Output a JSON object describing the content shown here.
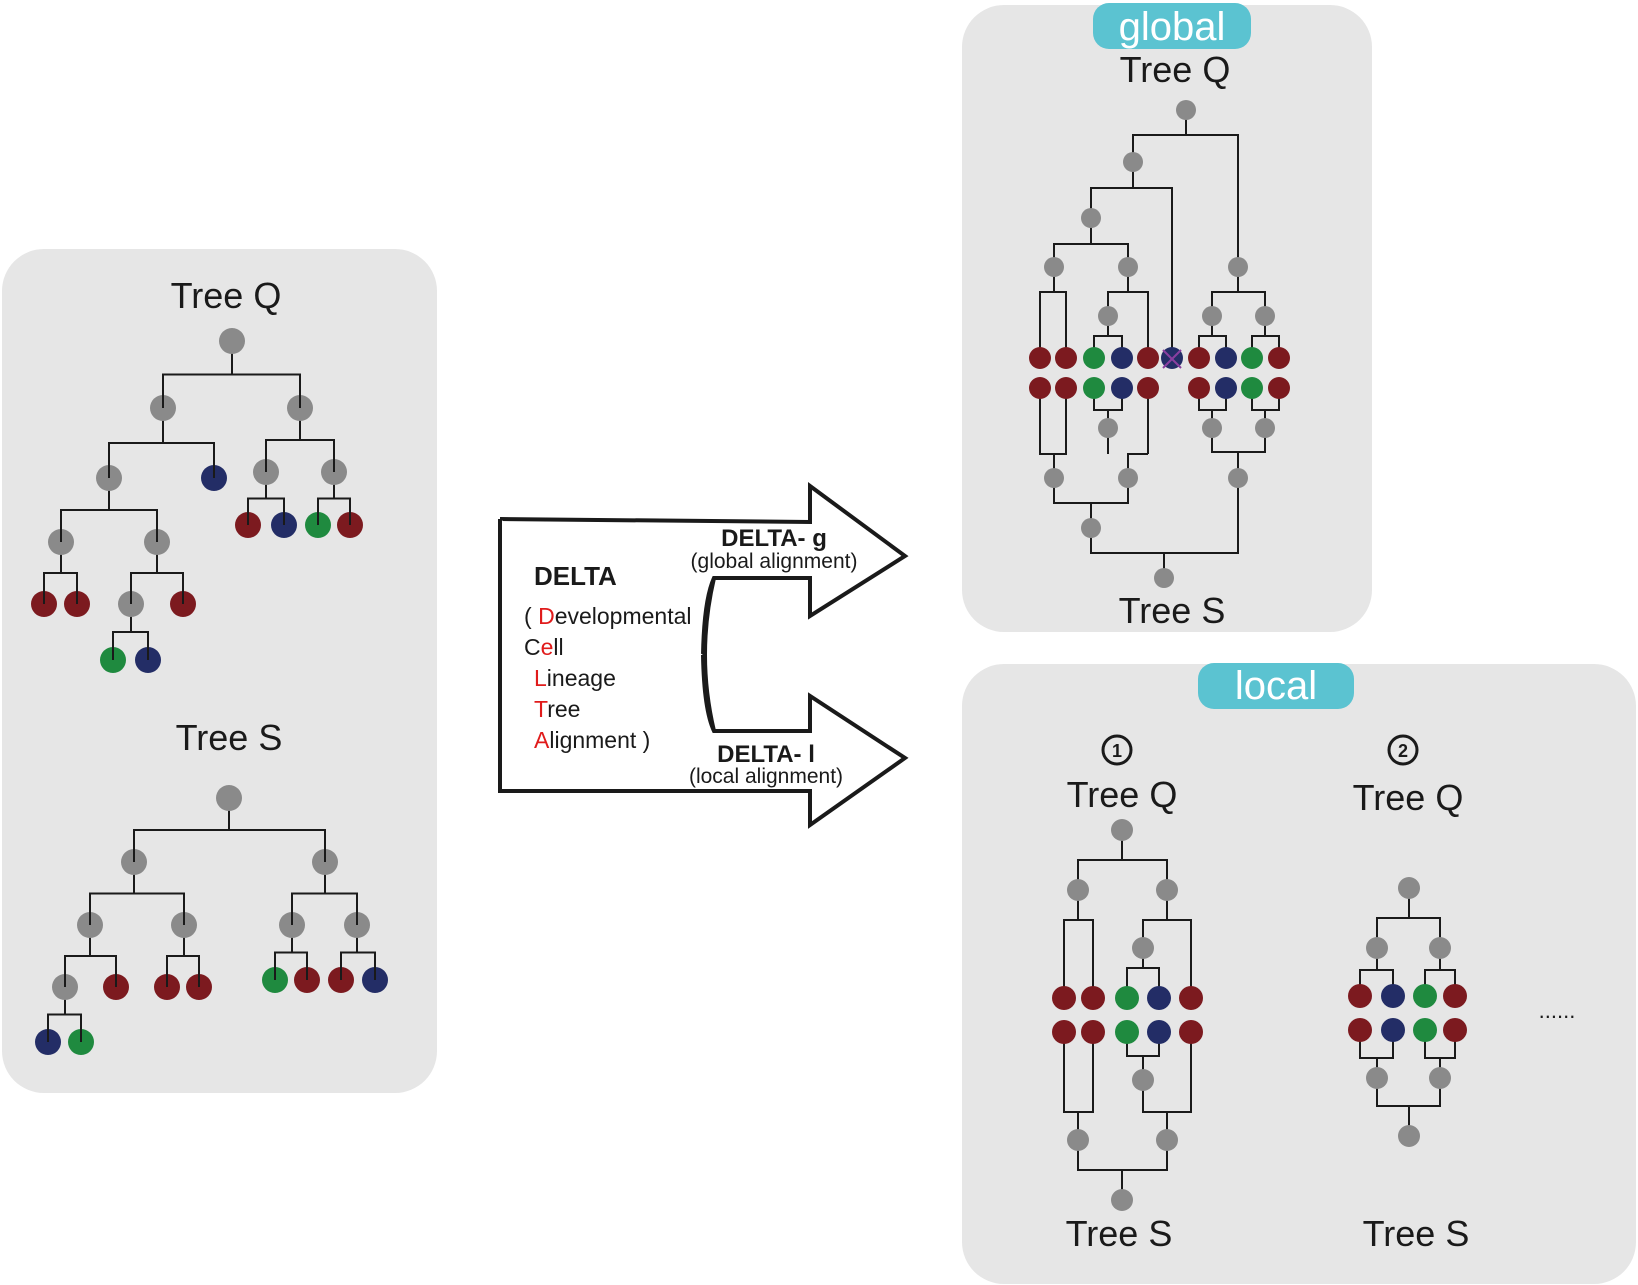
{
  "left_panel": {
    "tree_q_label": "Tree Q",
    "tree_s_label": "Tree S"
  },
  "arrows": {
    "delta_title": "DELTA",
    "acronym_lines": [
      {
        "parts": [
          {
            "t": "( ",
            "c": "black"
          },
          {
            "t": "D",
            "c": "red"
          },
          {
            "t": "evelopmental",
            "c": "black"
          }
        ]
      },
      {
        "parts": [
          {
            "t": "C",
            "c": "black"
          },
          {
            "t": "e",
            "c": "red"
          },
          {
            "t": "ll",
            "c": "black"
          }
        ]
      },
      {
        "parts": [
          {
            "t": "L",
            "c": "red"
          },
          {
            "t": "ineage",
            "c": "black"
          }
        ]
      },
      {
        "parts": [
          {
            "t": "T",
            "c": "red"
          },
          {
            "t": "ree",
            "c": "black"
          }
        ]
      },
      {
        "parts": [
          {
            "t": "A",
            "c": "red"
          },
          {
            "t": "lignment )",
            "c": "black"
          }
        ]
      }
    ],
    "global_name": "DELTA- g",
    "global_desc": "(global alignment)",
    "local_name": "DELTA- l",
    "local_desc": "(local alignment)"
  },
  "global_panel": {
    "badge": "global",
    "tree_q_label": "Tree Q",
    "tree_s_label": "Tree S"
  },
  "local_panel": {
    "badge": "local",
    "alignments": [
      {
        "number": "1",
        "tree_q_label": "Tree Q",
        "tree_s_label": "Tree S"
      },
      {
        "number": "2",
        "tree_q_label": "Tree Q",
        "tree_s_label": "Tree S"
      }
    ],
    "ellipsis": "......"
  },
  "colors": {
    "panel": "#e6e6e6",
    "badge": "#5bc3d1",
    "internal_node": "#8a8a8a",
    "red_cell": "#7c1a1f",
    "blue_cell": "#232d66",
    "green_cell": "#1f8a3f",
    "edge": "#1a1a1a",
    "acronym_red": "#e01b1b"
  },
  "trees": {
    "left_q": {
      "node": "g",
      "children": [
        {
          "node": "g",
          "children": [
            {
              "node": "g",
              "children": [
                {
                  "node": "g",
                  "children": [
                    {
                      "node": "r"
                    },
                    {
                      "node": "r"
                    }
                  ]
                },
                {
                  "node": "g",
                  "children": [
                    {
                      "node": "g",
                      "children": [
                        {
                          "node": "gr"
                        },
                        {
                          "node": "b"
                        }
                      ]
                    },
                    {
                      "node": "r"
                    }
                  ]
                }
              ]
            },
            {
              "node": "b"
            }
          ]
        },
        {
          "node": "g",
          "children": [
            {
              "node": "g",
              "children": [
                {
                  "node": "r"
                },
                {
                  "node": "b"
                }
              ]
            },
            {
              "node": "g",
              "children": [
                {
                  "node": "gr"
                },
                {
                  "node": "r"
                }
              ]
            }
          ]
        }
      ]
    },
    "left_s": {
      "node": "g",
      "children": [
        {
          "node": "g",
          "children": [
            {
              "node": "g",
              "children": [
                {
                  "node": "g",
                  "children": [
                    {
                      "node": "b"
                    },
                    {
                      "node": "gr"
                    }
                  ]
                },
                {
                  "node": "r"
                }
              ]
            },
            {
              "node": "g",
              "children": [
                {
                  "node": "r"
                },
                {
                  "node": "r"
                }
              ]
            }
          ]
        },
        {
          "node": "g",
          "children": [
            {
              "node": "g",
              "children": [
                {
                  "node": "gr"
                },
                {
                  "node": "r"
                }
              ]
            },
            {
              "node": "g",
              "children": [
                {
                  "node": "r"
                },
                {
                  "node": "b"
                }
              ]
            }
          ]
        }
      ]
    }
  }
}
